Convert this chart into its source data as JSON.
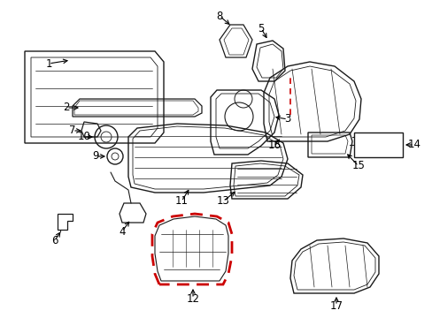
{
  "bg_color": "#ffffff",
  "line_color": "#1a1a1a",
  "red_color": "#cc0000",
  "figsize": [
    4.89,
    3.6
  ],
  "dpi": 100
}
